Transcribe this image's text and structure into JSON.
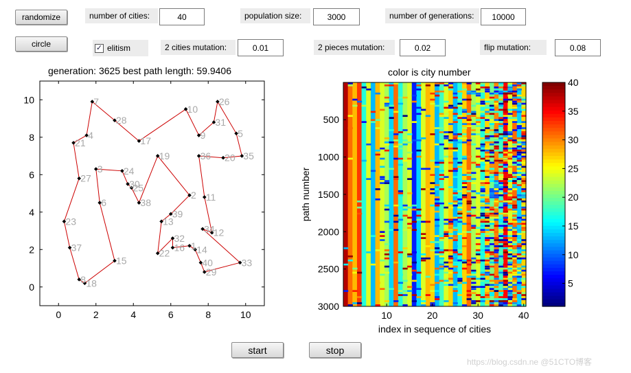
{
  "controls": {
    "randomize_label": "randomize",
    "circle_label": "circle",
    "start_label": "start",
    "stop_label": "stop",
    "elitism_label": "elitism",
    "elitism_checked": true,
    "num_cities_label": "number of cities:",
    "num_cities_value": "40",
    "pop_size_label": "population size:",
    "pop_size_value": "3000",
    "num_gen_label": "number of generations:",
    "num_gen_value": "10000",
    "mut2c_label": "2 cities mutation:",
    "mut2c_value": "0.01",
    "mut2p_label": "2 pieces mutation:",
    "mut2p_value": "0.02",
    "flip_label": "flip mutation:",
    "flip_value": "0.08"
  },
  "left_plot": {
    "title": "generation: 3625  best path length: 59.9406",
    "xticks": [
      "0",
      "2",
      "4",
      "6",
      "8",
      "10"
    ],
    "yticks": [
      "0",
      "2",
      "4",
      "6",
      "8",
      "10"
    ]
  },
  "right_plot": {
    "title": "color is city number",
    "xlabel": "index in sequence of cities",
    "ylabel": "path number",
    "xticks": [
      "10",
      "20",
      "30",
      "40"
    ],
    "yticks": [
      "500",
      "1000",
      "1500",
      "2000",
      "2500",
      "3000"
    ],
    "colorbar_ticks": [
      "5",
      "10",
      "15",
      "20",
      "25",
      "30",
      "35",
      "40"
    ]
  },
  "watermark": "https://blog.csdn.ne  @51CTO博客",
  "chart_data": [
    {
      "type": "scatter",
      "title": "generation: 3625  best path length: 59.9406",
      "xlim": [
        -1,
        11
      ],
      "ylim": [
        -1,
        11
      ],
      "best_path_length": 59.9406,
      "generation": 3625,
      "marker_color": "#000000",
      "line_color": "#cc0000",
      "label_color": "#a8a8a8",
      "cities": [
        {
          "id": "7",
          "x": 1.8,
          "y": 9.9
        },
        {
          "id": "28",
          "x": 3.0,
          "y": 8.9
        },
        {
          "id": "17",
          "x": 4.3,
          "y": 7.8
        },
        {
          "id": "10",
          "x": 6.8,
          "y": 9.5
        },
        {
          "id": "9",
          "x": 7.5,
          "y": 8.1
        },
        {
          "id": "31",
          "x": 8.3,
          "y": 8.8
        },
        {
          "id": "26",
          "x": 8.5,
          "y": 9.9
        },
        {
          "id": "5",
          "x": 9.5,
          "y": 8.2
        },
        {
          "id": "35",
          "x": 9.8,
          "y": 7.0
        },
        {
          "id": "20",
          "x": 8.8,
          "y": 6.9
        },
        {
          "id": "36",
          "x": 7.5,
          "y": 7.0
        },
        {
          "id": "11",
          "x": 7.8,
          "y": 4.8
        },
        {
          "id": "12",
          "x": 8.2,
          "y": 2.9
        },
        {
          "id": "34",
          "x": 7.7,
          "y": 3.1
        },
        {
          "id": "33",
          "x": 9.7,
          "y": 1.3
        },
        {
          "id": "29",
          "x": 7.8,
          "y": 0.8
        },
        {
          "id": "40",
          "x": 7.6,
          "y": 1.3
        },
        {
          "id": "14",
          "x": 7.3,
          "y": 2.0
        },
        {
          "id": "1",
          "x": 7.0,
          "y": 2.2
        },
        {
          "id": "16",
          "x": 6.1,
          "y": 2.1
        },
        {
          "id": "32",
          "x": 6.1,
          "y": 2.6
        },
        {
          "id": "22",
          "x": 5.3,
          "y": 1.8
        },
        {
          "id": "13",
          "x": 5.5,
          "y": 3.5
        },
        {
          "id": "39",
          "x": 6.0,
          "y": 3.9
        },
        {
          "id": "2",
          "x": 7.0,
          "y": 4.9
        },
        {
          "id": "19",
          "x": 5.3,
          "y": 7.0
        },
        {
          "id": "38",
          "x": 4.3,
          "y": 4.5
        },
        {
          "id": "25",
          "x": 3.9,
          "y": 5.3
        },
        {
          "id": "30",
          "x": 3.7,
          "y": 5.5
        },
        {
          "id": "24",
          "x": 3.4,
          "y": 6.2
        },
        {
          "id": "3",
          "x": 2.0,
          "y": 6.3
        },
        {
          "id": "6",
          "x": 2.2,
          "y": 4.5
        },
        {
          "id": "15",
          "x": 3.0,
          "y": 1.4
        },
        {
          "id": "18",
          "x": 1.4,
          "y": 0.2
        },
        {
          "id": "8",
          "x": 1.1,
          "y": 0.4
        },
        {
          "id": "37",
          "x": 0.6,
          "y": 2.1
        },
        {
          "id": "23",
          "x": 0.3,
          "y": 3.5
        },
        {
          "id": "27",
          "x": 1.1,
          "y": 5.8
        },
        {
          "id": "21",
          "x": 0.8,
          "y": 7.7
        },
        {
          "id": "4",
          "x": 1.5,
          "y": 8.1
        }
      ]
    },
    {
      "type": "heatmap",
      "title": "color is city number",
      "xlabel": "index in sequence of cities",
      "ylabel": "path number",
      "xlim": [
        1,
        40
      ],
      "ylim": [
        1,
        3000
      ],
      "y_reversed": true,
      "colormap": "jet",
      "clim": [
        1,
        40
      ],
      "dominant_column_values": [
        38,
        31,
        28,
        33,
        17,
        24,
        13,
        28,
        24,
        22,
        14,
        31,
        17,
        22,
        24,
        7,
        14,
        24,
        28,
        27,
        13,
        18,
        24,
        27,
        13,
        17,
        27,
        31,
        22,
        24,
        17,
        27,
        20,
        30,
        18,
        35,
        24,
        31,
        14,
        27
      ]
    }
  ]
}
